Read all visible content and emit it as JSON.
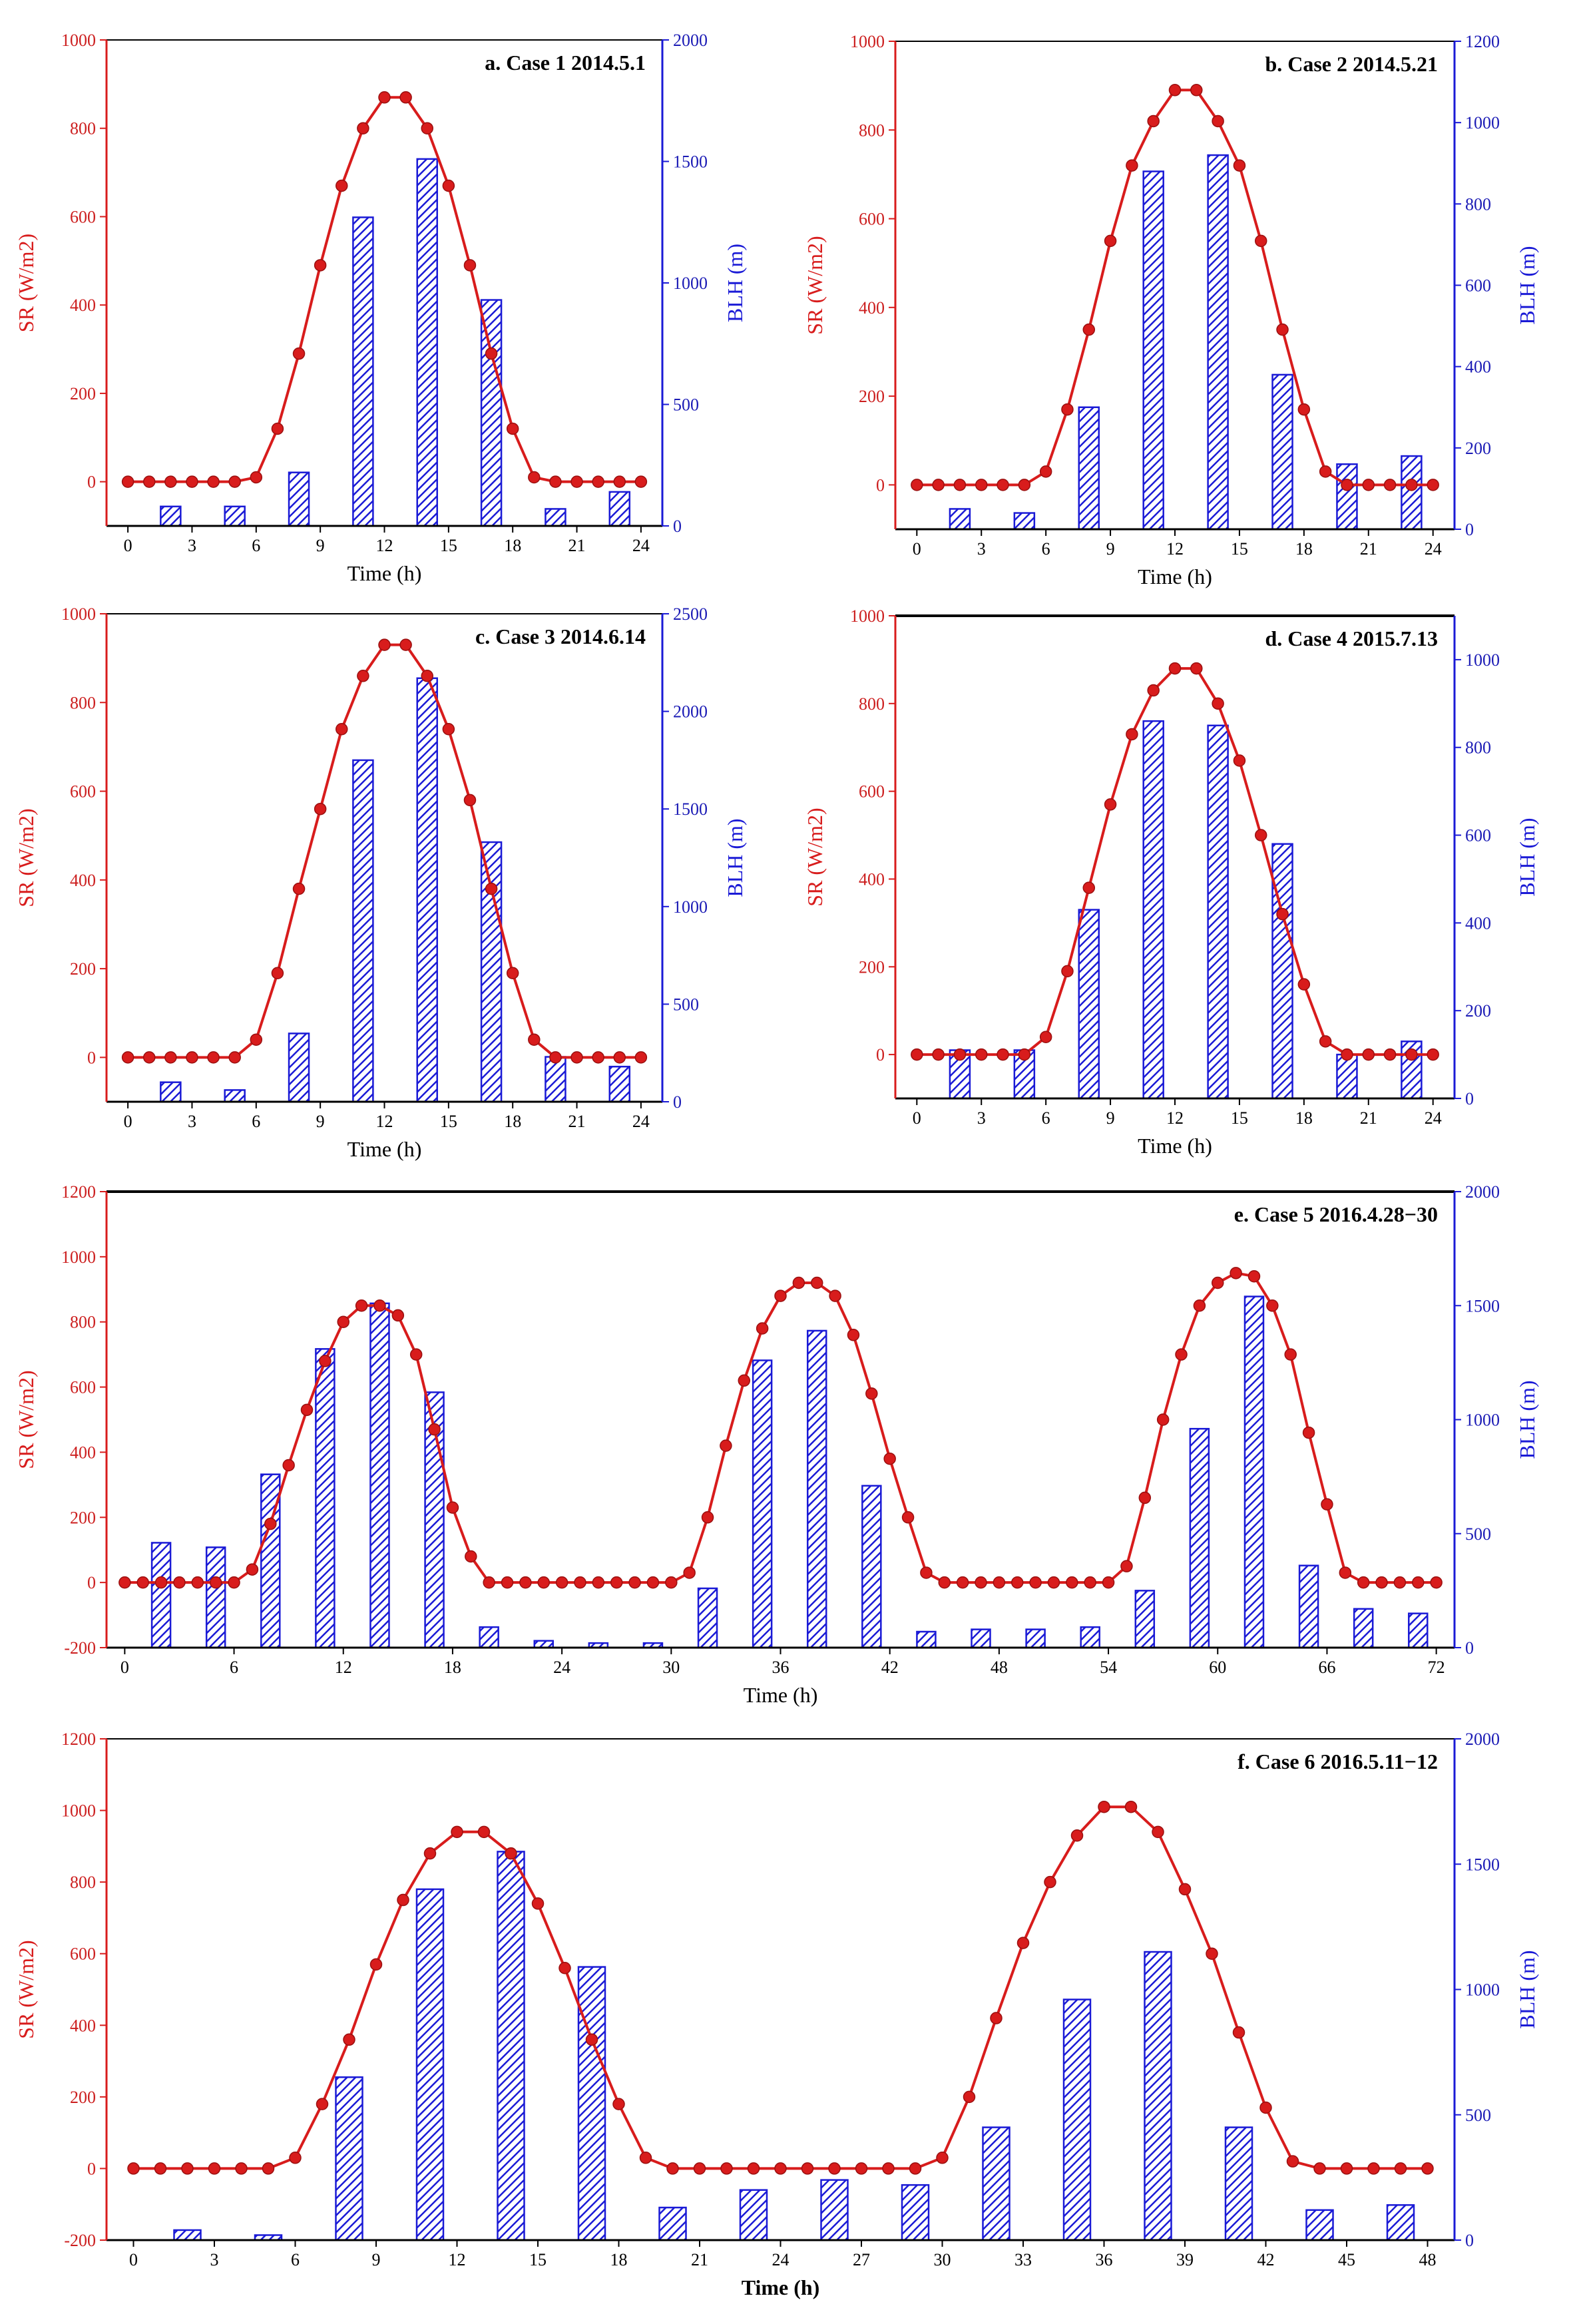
{
  "colors": {
    "sr": "#d81c1c",
    "blh": "#1a1ad6",
    "axis": "#000000"
  },
  "chart_data": [
    {
      "id": "a",
      "type": "bar+line",
      "title": "a. Case 1 2014.5.1",
      "xlabel": "Time (h)",
      "ylabel_left": "SR (W/m2)",
      "ylabel_right": "BLH (m)",
      "xlim": [
        -1,
        25
      ],
      "xticks": [
        "0",
        "3",
        "6",
        "9",
        "12",
        "15",
        "18",
        "21",
        "24"
      ],
      "ylim_left": [
        -100,
        1000
      ],
      "yticks_left": [
        "0",
        "200",
        "400",
        "600",
        "800",
        "1000"
      ],
      "ylim_right": [
        0,
        2000
      ],
      "yticks_right": [
        "0",
        "500",
        "1000",
        "1500",
        "2000"
      ],
      "line": {
        "name": "SR",
        "x": [
          0,
          1,
          2,
          3,
          4,
          5,
          6,
          7,
          8,
          9,
          10,
          11,
          12,
          13,
          14,
          15,
          16,
          17,
          18,
          19,
          20,
          21,
          22,
          23,
          24
        ],
        "y": [
          0,
          0,
          0,
          0,
          0,
          0,
          10,
          120,
          290,
          490,
          670,
          800,
          870,
          870,
          800,
          670,
          490,
          290,
          120,
          10,
          0,
          0,
          0,
          0,
          0
        ]
      },
      "bars": {
        "name": "BLH",
        "x": [
          2,
          5,
          8,
          11,
          14,
          17,
          20,
          23
        ],
        "y": [
          80,
          80,
          220,
          1270,
          1510,
          930,
          70,
          140
        ]
      }
    },
    {
      "id": "b",
      "type": "bar+line",
      "title": "b. Case 2 2014.5.21",
      "xlabel": "Time (h)",
      "ylabel_left": "SR (W/m2)",
      "ylabel_right": "BLH (m)",
      "xlim": [
        -1,
        25
      ],
      "xticks": [
        "0",
        "3",
        "6",
        "9",
        "12",
        "15",
        "18",
        "21",
        "24"
      ],
      "ylim_left": [
        -100,
        1000
      ],
      "yticks_left": [
        "0",
        "200",
        "400",
        "600",
        "800",
        "1000"
      ],
      "ylim_right": [
        0,
        1200
      ],
      "yticks_right": [
        "0",
        "200",
        "400",
        "600",
        "800",
        "1000",
        "1200"
      ],
      "line": {
        "name": "SR",
        "x": [
          0,
          1,
          2,
          3,
          4,
          5,
          6,
          7,
          8,
          9,
          10,
          11,
          12,
          13,
          14,
          15,
          16,
          17,
          18,
          19,
          20,
          21,
          22,
          23,
          24
        ],
        "y": [
          0,
          0,
          0,
          0,
          0,
          0,
          30,
          170,
          350,
          550,
          720,
          820,
          890,
          890,
          820,
          720,
          550,
          350,
          170,
          30,
          0,
          0,
          0,
          0,
          0
        ]
      },
      "bars": {
        "name": "BLH",
        "x": [
          2,
          5,
          8,
          11,
          14,
          17,
          20,
          23
        ],
        "y": [
          50,
          40,
          300,
          880,
          920,
          380,
          160,
          180
        ]
      }
    },
    {
      "id": "c",
      "type": "bar+line",
      "title": "c. Case 3 2014.6.14",
      "xlabel": "Time (h)",
      "ylabel_left": "SR (W/m2)",
      "ylabel_right": "BLH (m)",
      "xlim": [
        -1,
        25
      ],
      "xticks": [
        "0",
        "3",
        "6",
        "9",
        "12",
        "15",
        "18",
        "21",
        "24"
      ],
      "ylim_left": [
        -100,
        1000
      ],
      "yticks_left": [
        "0",
        "200",
        "400",
        "600",
        "800",
        "1000"
      ],
      "ylim_right": [
        0,
        2500
      ],
      "yticks_right": [
        "0",
        "500",
        "1000",
        "1500",
        "2000",
        "2500"
      ],
      "line": {
        "name": "SR",
        "x": [
          0,
          1,
          2,
          3,
          4,
          5,
          6,
          7,
          8,
          9,
          10,
          11,
          12,
          13,
          14,
          15,
          16,
          17,
          18,
          19,
          20,
          21,
          22,
          23,
          24
        ],
        "y": [
          0,
          0,
          0,
          0,
          0,
          0,
          40,
          190,
          380,
          560,
          740,
          860,
          930,
          930,
          860,
          740,
          580,
          380,
          190,
          40,
          0,
          0,
          0,
          0,
          0
        ]
      },
      "bars": {
        "name": "BLH",
        "x": [
          2,
          5,
          8,
          11,
          14,
          17,
          20,
          23
        ],
        "y": [
          100,
          60,
          350,
          1750,
          2170,
          1330,
          230,
          180
        ]
      }
    },
    {
      "id": "d",
      "type": "bar+line",
      "title": "d. Case 4 2015.7.13",
      "xlabel": "Time (h)",
      "ylabel_left": "SR (W/m2)",
      "ylabel_right": "BLH (m)",
      "xlim": [
        -1,
        25
      ],
      "xticks": [
        "0",
        "3",
        "6",
        "9",
        "12",
        "15",
        "18",
        "21",
        "24"
      ],
      "ylim_left": [
        -100,
        1000
      ],
      "yticks_left": [
        "0",
        "200",
        "400",
        "600",
        "800",
        "1000"
      ],
      "ylim_right": [
        0,
        1100
      ],
      "yticks_right": [
        "0",
        "200",
        "400",
        "600",
        "800",
        "1000"
      ],
      "line": {
        "name": "SR",
        "x": [
          0,
          1,
          2,
          3,
          4,
          5,
          6,
          7,
          8,
          9,
          10,
          11,
          12,
          13,
          14,
          15,
          16,
          17,
          18,
          19,
          20,
          21,
          22,
          23,
          24
        ],
        "y": [
          0,
          0,
          0,
          0,
          0,
          0,
          40,
          190,
          380,
          570,
          730,
          830,
          880,
          880,
          800,
          670,
          500,
          320,
          160,
          30,
          0,
          0,
          0,
          0,
          0
        ]
      },
      "bars": {
        "name": "BLH",
        "x": [
          2,
          5,
          8,
          11,
          14,
          17,
          20,
          23
        ],
        "y": [
          110,
          110,
          430,
          860,
          850,
          580,
          100,
          130
        ]
      }
    },
    {
      "id": "e",
      "type": "bar+line",
      "title": "e. Case 5 2016.4.28−30",
      "xlabel": "Time (h)",
      "ylabel_left": "SR (W/m2)",
      "ylabel_right": "BLH (m)",
      "xlim": [
        -1,
        73
      ],
      "xticks": [
        "0",
        "6",
        "12",
        "18",
        "24",
        "30",
        "36",
        "42",
        "48",
        "54",
        "60",
        "66",
        "72"
      ],
      "ylim_left": [
        -200,
        1200
      ],
      "yticks_left": [
        "-200",
        "0",
        "200",
        "400",
        "600",
        "800",
        "1000",
        "1200"
      ],
      "ylim_right": [
        0,
        2000
      ],
      "yticks_right": [
        "0",
        "500",
        "1000",
        "1500",
        "2000"
      ],
      "line": {
        "name": "SR",
        "x": [
          0,
          1,
          2,
          3,
          4,
          5,
          6,
          7,
          8,
          9,
          10,
          11,
          12,
          13,
          14,
          15,
          16,
          17,
          18,
          19,
          20,
          21,
          22,
          23,
          24,
          25,
          26,
          27,
          28,
          29,
          30,
          31,
          32,
          33,
          34,
          35,
          36,
          37,
          38,
          39,
          40,
          41,
          42,
          43,
          44,
          45,
          46,
          47,
          48,
          49,
          50,
          51,
          52,
          53,
          54,
          55,
          56,
          57,
          58,
          59,
          60,
          61,
          62,
          63,
          64,
          65,
          66,
          67,
          68,
          69,
          70,
          71,
          72
        ],
        "y": [
          0,
          0,
          0,
          0,
          0,
          0,
          0,
          40,
          180,
          360,
          530,
          680,
          800,
          850,
          850,
          820,
          700,
          470,
          230,
          80,
          0,
          0,
          0,
          0,
          0,
          0,
          0,
          0,
          0,
          0,
          0,
          30,
          200,
          420,
          620,
          780,
          880,
          920,
          920,
          880,
          760,
          580,
          380,
          200,
          30,
          0,
          0,
          0,
          0,
          0,
          0,
          0,
          0,
          0,
          0,
          50,
          260,
          500,
          700,
          850,
          920,
          950,
          940,
          850,
          700,
          460,
          240,
          30,
          0,
          0,
          0,
          0,
          0
        ]
      },
      "bars": {
        "name": "BLH",
        "x": [
          2,
          5,
          8,
          11,
          14,
          17,
          20,
          23,
          26,
          29,
          32,
          35,
          38,
          41,
          44,
          47,
          50,
          53,
          56,
          59,
          62,
          65,
          68,
          71
        ],
        "y": [
          460,
          440,
          760,
          1310,
          1510,
          1120,
          90,
          30,
          20,
          20,
          260,
          1260,
          1390,
          710,
          70,
          80,
          80,
          90,
          250,
          960,
          1540,
          360,
          170,
          150
        ]
      }
    },
    {
      "id": "f",
      "type": "bar+line",
      "title": "f. Case 6 2016.5.11−12",
      "xlabel": "Time (h)",
      "ylabel_left": "SR (W/m2)",
      "ylabel_right": "BLH (m)",
      "xlim": [
        -1,
        49
      ],
      "xticks": [
        "0",
        "3",
        "6",
        "9",
        "12",
        "15",
        "18",
        "21",
        "24",
        "27",
        "30",
        "33",
        "36",
        "39",
        "42",
        "45",
        "48"
      ],
      "ylim_left": [
        -200,
        1200
      ],
      "yticks_left": [
        "-200",
        "0",
        "200",
        "400",
        "600",
        "800",
        "1000",
        "1200"
      ],
      "ylim_right": [
        0,
        2000
      ],
      "yticks_right": [
        "0",
        "500",
        "1000",
        "1500",
        "2000"
      ],
      "line": {
        "name": "SR",
        "x": [
          0,
          1,
          2,
          3,
          4,
          5,
          6,
          7,
          8,
          9,
          10,
          11,
          12,
          13,
          14,
          15,
          16,
          17,
          18,
          19,
          20,
          21,
          22,
          23,
          24,
          25,
          26,
          27,
          28,
          29,
          30,
          31,
          32,
          33,
          34,
          35,
          36,
          37,
          38,
          39,
          40,
          41,
          42,
          43,
          44,
          45,
          46,
          47,
          48
        ],
        "y": [
          0,
          0,
          0,
          0,
          0,
          0,
          30,
          180,
          360,
          570,
          750,
          880,
          940,
          940,
          880,
          740,
          560,
          360,
          180,
          30,
          0,
          0,
          0,
          0,
          0,
          0,
          0,
          0,
          0,
          0,
          30,
          200,
          420,
          630,
          800,
          930,
          1010,
          1010,
          940,
          780,
          600,
          380,
          170,
          20,
          0,
          0,
          0,
          0,
          0
        ]
      },
      "bars": {
        "name": "BLH",
        "x": [
          2,
          5,
          8,
          11,
          14,
          17,
          20,
          23,
          26,
          29,
          32,
          35,
          38,
          41,
          44,
          47
        ],
        "y": [
          40,
          20,
          650,
          1400,
          1550,
          1090,
          130,
          200,
          240,
          220,
          450,
          960,
          1150,
          450,
          120,
          140
        ]
      }
    }
  ]
}
